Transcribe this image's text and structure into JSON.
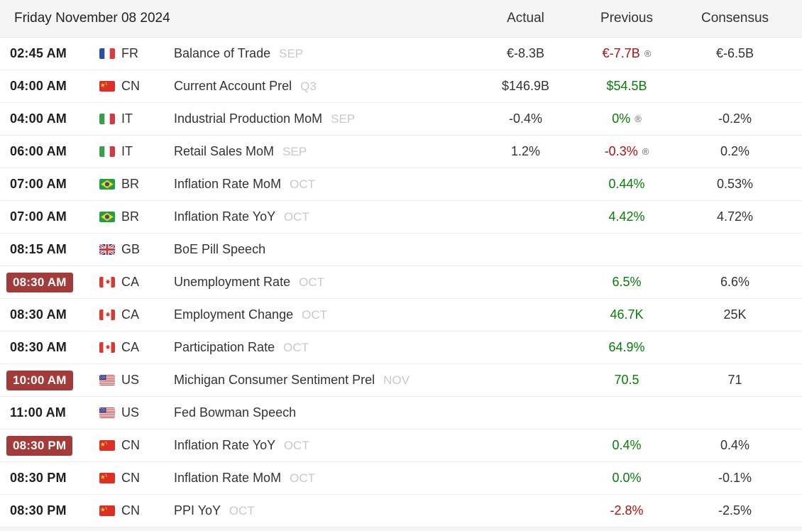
{
  "header": {
    "date": "Friday November 08 2024",
    "columns": [
      "Actual",
      "Previous",
      "Consensus"
    ]
  },
  "symbols": {
    "revised": "®"
  },
  "colors": {
    "green": "#067d06",
    "red": "#b01111",
    "badge_background": "#a33b3b",
    "badge_text": "#ffffff",
    "neutral_value": "#333333",
    "reference_text": "#c9c9c9",
    "header_background": "#f5f5f6",
    "row_border": "#ececec",
    "time_text": "#1f1f1f"
  },
  "rows": [
    {
      "time": "02:45 AM",
      "time_highlighted": false,
      "country": "FR",
      "flag": "fr",
      "event": "Balance of Trade",
      "ref": "SEP",
      "actual": {
        "text": "€-8.3B",
        "color": "neutral"
      },
      "previous": {
        "text": "€-7.7B",
        "color": "red",
        "revised": true
      },
      "consensus": "€-6.5B"
    },
    {
      "time": "04:00 AM",
      "time_highlighted": false,
      "country": "CN",
      "flag": "cn",
      "event": "Current Account Prel",
      "ref": "Q3",
      "actual": {
        "text": "$146.9B",
        "color": "neutral"
      },
      "previous": {
        "text": "$54.5B",
        "color": "green",
        "revised": false
      },
      "consensus": ""
    },
    {
      "time": "04:00 AM",
      "time_highlighted": false,
      "country": "IT",
      "flag": "it",
      "event": "Industrial Production MoM",
      "ref": "SEP",
      "actual": {
        "text": "-0.4%",
        "color": "neutral"
      },
      "previous": {
        "text": "0%",
        "color": "green",
        "revised": true
      },
      "consensus": "-0.2%"
    },
    {
      "time": "06:00 AM",
      "time_highlighted": false,
      "country": "IT",
      "flag": "it",
      "event": "Retail Sales MoM",
      "ref": "SEP",
      "actual": {
        "text": "1.2%",
        "color": "neutral"
      },
      "previous": {
        "text": "-0.3%",
        "color": "red",
        "revised": true
      },
      "consensus": "0.2%"
    },
    {
      "time": "07:00 AM",
      "time_highlighted": false,
      "country": "BR",
      "flag": "br",
      "event": "Inflation Rate MoM",
      "ref": "OCT",
      "actual": {
        "text": "",
        "color": "neutral"
      },
      "previous": {
        "text": "0.44%",
        "color": "green",
        "revised": false
      },
      "consensus": "0.53%"
    },
    {
      "time": "07:00 AM",
      "time_highlighted": false,
      "country": "BR",
      "flag": "br",
      "event": "Inflation Rate YoY",
      "ref": "OCT",
      "actual": {
        "text": "",
        "color": "neutral"
      },
      "previous": {
        "text": "4.42%",
        "color": "green",
        "revised": false
      },
      "consensus": "4.72%"
    },
    {
      "time": "08:15 AM",
      "time_highlighted": false,
      "country": "GB",
      "flag": "gb",
      "event": "BoE Pill Speech",
      "ref": "",
      "actual": {
        "text": "",
        "color": "neutral"
      },
      "previous": {
        "text": "",
        "color": "neutral",
        "revised": false
      },
      "consensus": ""
    },
    {
      "time": "08:30 AM",
      "time_highlighted": true,
      "country": "CA",
      "flag": "ca",
      "event": "Unemployment Rate",
      "ref": "OCT",
      "actual": {
        "text": "",
        "color": "neutral"
      },
      "previous": {
        "text": "6.5%",
        "color": "green",
        "revised": false
      },
      "consensus": "6.6%"
    },
    {
      "time": "08:30 AM",
      "time_highlighted": false,
      "country": "CA",
      "flag": "ca",
      "event": "Employment Change",
      "ref": "OCT",
      "actual": {
        "text": "",
        "color": "neutral"
      },
      "previous": {
        "text": "46.7K",
        "color": "green",
        "revised": false
      },
      "consensus": "25K"
    },
    {
      "time": "08:30 AM",
      "time_highlighted": false,
      "country": "CA",
      "flag": "ca",
      "event": "Participation Rate",
      "ref": "OCT",
      "actual": {
        "text": "",
        "color": "neutral"
      },
      "previous": {
        "text": "64.9%",
        "color": "green",
        "revised": false
      },
      "consensus": ""
    },
    {
      "time": "10:00 AM",
      "time_highlighted": true,
      "country": "US",
      "flag": "us",
      "event": "Michigan Consumer Sentiment Prel",
      "ref": "NOV",
      "actual": {
        "text": "",
        "color": "neutral"
      },
      "previous": {
        "text": "70.5",
        "color": "green",
        "revised": false
      },
      "consensus": "71"
    },
    {
      "time": "11:00 AM",
      "time_highlighted": false,
      "country": "US",
      "flag": "us",
      "event": "Fed Bowman Speech",
      "ref": "",
      "actual": {
        "text": "",
        "color": "neutral"
      },
      "previous": {
        "text": "",
        "color": "neutral",
        "revised": false
      },
      "consensus": ""
    },
    {
      "time": "08:30 PM",
      "time_highlighted": true,
      "country": "CN",
      "flag": "cn",
      "event": "Inflation Rate YoY",
      "ref": "OCT",
      "actual": {
        "text": "",
        "color": "neutral"
      },
      "previous": {
        "text": "0.4%",
        "color": "green",
        "revised": false
      },
      "consensus": "0.4%"
    },
    {
      "time": "08:30 PM",
      "time_highlighted": false,
      "country": "CN",
      "flag": "cn",
      "event": "Inflation Rate MoM",
      "ref": "OCT",
      "actual": {
        "text": "",
        "color": "neutral"
      },
      "previous": {
        "text": "0.0%",
        "color": "green",
        "revised": false
      },
      "consensus": "-0.1%"
    },
    {
      "time": "08:30 PM",
      "time_highlighted": false,
      "country": "CN",
      "flag": "cn",
      "event": "PPI YoY",
      "ref": "OCT",
      "actual": {
        "text": "",
        "color": "neutral"
      },
      "previous": {
        "text": "-2.8%",
        "color": "red",
        "revised": false
      },
      "consensus": "-2.5%"
    }
  ]
}
